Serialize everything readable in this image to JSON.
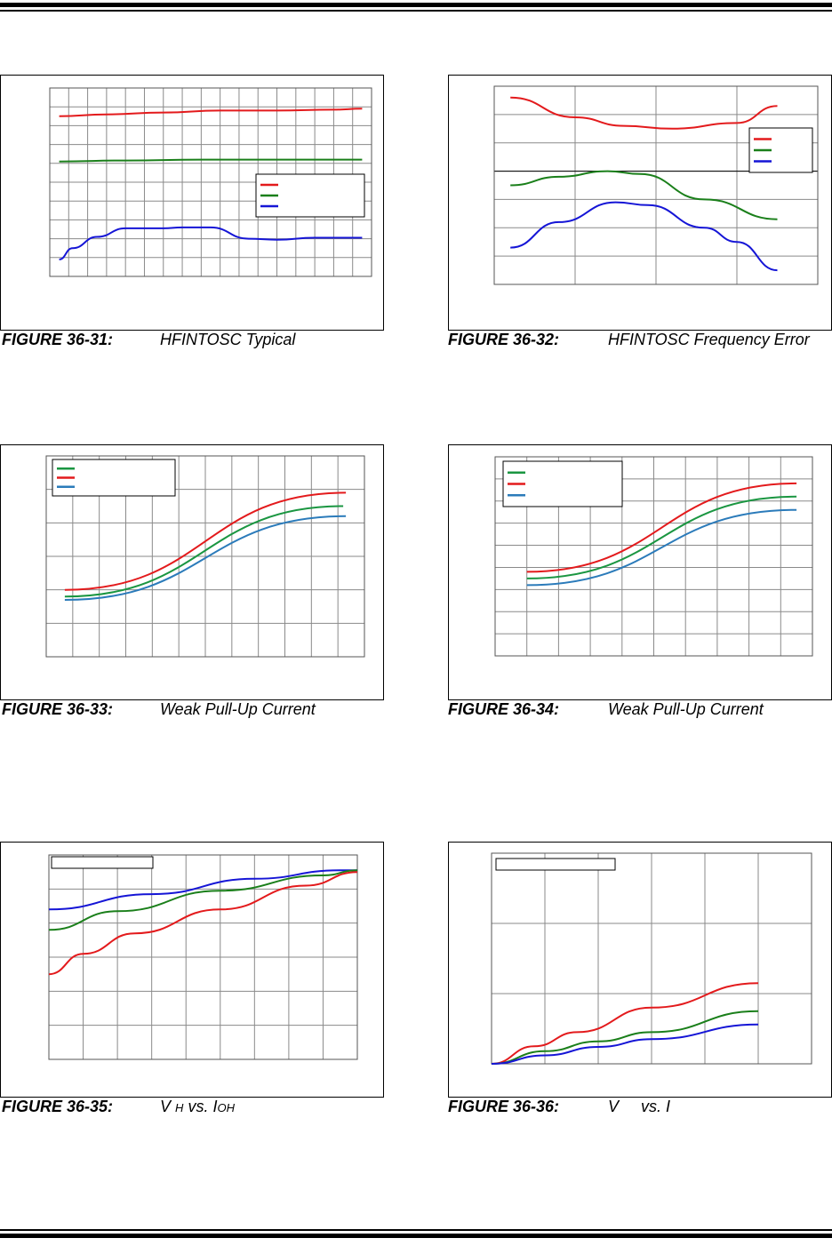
{
  "charts": [
    {
      "id": "c31",
      "caption_number": "FIGURE 36-31:",
      "caption_title": "HFINTOSC Typical",
      "chart_data": {
        "type": "line",
        "xlim": [
          0,
          17
        ],
        "ylim": [
          0,
          10
        ],
        "x_gridlines": 17,
        "y_gridlines": 10,
        "legend": "right",
        "series": [
          {
            "color": "#e31a1c",
            "points": [
              [
                0.5,
                8.5
              ],
              [
                3,
                8.6
              ],
              [
                6,
                8.7
              ],
              [
                9,
                8.8
              ],
              [
                12,
                8.8
              ],
              [
                15,
                8.85
              ],
              [
                16.5,
                8.9
              ]
            ]
          },
          {
            "color": "#1a7f1a",
            "points": [
              [
                0.5,
                6.1
              ],
              [
                4,
                6.15
              ],
              [
                8,
                6.2
              ],
              [
                12,
                6.2
              ],
              [
                16.5,
                6.2
              ]
            ]
          },
          {
            "color": "#1515d6",
            "points": [
              [
                0.5,
                0.9
              ],
              [
                1.2,
                1.5
              ],
              [
                2.5,
                2.1
              ],
              [
                4,
                2.55
              ],
              [
                6,
                2.55
              ],
              [
                7,
                2.6
              ],
              [
                8.5,
                2.6
              ],
              [
                10.5,
                2.0
              ],
              [
                12,
                1.95
              ],
              [
                14,
                2.05
              ],
              [
                16.5,
                2.05
              ]
            ]
          }
        ]
      }
    },
    {
      "id": "c32",
      "caption_number": "FIGURE 36-32:",
      "caption_title": "HFINTOSC Frequency Error",
      "chart_data": {
        "type": "line",
        "xlim": [
          0,
          4
        ],
        "ylim": [
          0,
          7
        ],
        "x_gridlines": 4,
        "y_gridlines": 7,
        "zero_line": 4,
        "legend": "right",
        "series": [
          {
            "color": "#e31a1c",
            "points": [
              [
                0.2,
                6.6
              ],
              [
                1,
                5.9
              ],
              [
                1.6,
                5.6
              ],
              [
                2.2,
                5.5
              ],
              [
                3,
                5.7
              ],
              [
                3.5,
                6.3
              ]
            ]
          },
          {
            "color": "#1a7f1a",
            "points": [
              [
                0.2,
                3.5
              ],
              [
                0.8,
                3.8
              ],
              [
                1.4,
                4.0
              ],
              [
                1.8,
                3.9
              ],
              [
                2.6,
                3.0
              ],
              [
                3.5,
                2.3
              ]
            ]
          },
          {
            "color": "#1515d6",
            "points": [
              [
                0.2,
                1.3
              ],
              [
                0.8,
                2.2
              ],
              [
                1.5,
                2.9
              ],
              [
                1.9,
                2.8
              ],
              [
                2.6,
                2.0
              ],
              [
                3.0,
                1.5
              ],
              [
                3.5,
                0.5
              ]
            ]
          }
        ]
      }
    },
    {
      "id": "c33",
      "caption_number": "FIGURE 36-33:",
      "caption_title": "Weak Pull-Up Current",
      "chart_data": {
        "type": "line",
        "xlim": [
          0,
          12
        ],
        "ylim": [
          0,
          6
        ],
        "x_gridlines": 12,
        "y_gridlines": 6,
        "legend": "top-left",
        "series": [
          {
            "color": "#1a9641",
            "points": [
              [
                0.7,
                1.8
              ],
              [
                11.2,
                4.5
              ]
            ]
          },
          {
            "color": "#e31a1c",
            "points": [
              [
                0.7,
                2.0
              ],
              [
                11.3,
                4.9
              ]
            ]
          },
          {
            "color": "#2b7bba",
            "points": [
              [
                0.7,
                1.7
              ],
              [
                11.3,
                4.2
              ]
            ]
          }
        ]
      }
    },
    {
      "id": "c34",
      "caption_number": "FIGURE 36-34:",
      "caption_title": "Weak Pull-Up Current",
      "chart_data": {
        "type": "line",
        "xlim": [
          0,
          10
        ],
        "ylim": [
          0,
          9
        ],
        "x_gridlines": 10,
        "y_gridlines": 9,
        "legend": "top-left",
        "series": [
          {
            "color": "#1a9641",
            "points": [
              [
                1,
                3.5
              ],
              [
                9.5,
                7.2
              ]
            ]
          },
          {
            "color": "#e31a1c",
            "points": [
              [
                1,
                3.8
              ],
              [
                9.5,
                7.8
              ]
            ]
          },
          {
            "color": "#2b7bba",
            "points": [
              [
                1,
                3.2
              ],
              [
                9.5,
                6.6
              ]
            ]
          }
        ]
      }
    },
    {
      "id": "c35",
      "caption_number": "FIGURE 36-35:",
      "caption_title_main": "V",
      "caption_title_sub": "H",
      "caption_title_vs": "vs. I",
      "caption_title_sub2": "OH",
      "chart_data": {
        "type": "line",
        "xlim": [
          0,
          9
        ],
        "ylim": [
          0,
          6
        ],
        "x_gridlines": 9,
        "y_gridlines": 6,
        "legend": "top-left",
        "series": [
          {
            "color": "#1515d6",
            "points": [
              [
                0,
                4.4
              ],
              [
                3,
                4.85
              ],
              [
                6,
                5.3
              ],
              [
                8.5,
                5.55
              ],
              [
                9,
                5.55
              ]
            ]
          },
          {
            "color": "#1a7f1a",
            "points": [
              [
                0,
                3.8
              ],
              [
                2,
                4.35
              ],
              [
                5,
                4.95
              ],
              [
                8,
                5.4
              ],
              [
                9,
                5.55
              ]
            ]
          },
          {
            "color": "#e31a1c",
            "points": [
              [
                0,
                2.5
              ],
              [
                1,
                3.1
              ],
              [
                2.5,
                3.7
              ],
              [
                5,
                4.4
              ],
              [
                7.5,
                5.1
              ],
              [
                9,
                5.5
              ]
            ]
          }
        ]
      }
    },
    {
      "id": "c36",
      "caption_number": "FIGURE 36-36:",
      "caption_title_main": "V",
      "caption_title_vs": "vs. I",
      "chart_data": {
        "type": "line",
        "xlim": [
          0,
          6
        ],
        "ylim": [
          0,
          3
        ],
        "x_gridlines": 6,
        "y_gridlines": 3,
        "legend": "top-left",
        "series": [
          {
            "color": "#e31a1c",
            "points": [
              [
                0,
                0
              ],
              [
                0.8,
                0.25
              ],
              [
                1.6,
                0.45
              ],
              [
                3,
                0.8
              ],
              [
                5,
                1.15
              ]
            ]
          },
          {
            "color": "#1a7f1a",
            "points": [
              [
                0,
                0
              ],
              [
                1,
                0.18
              ],
              [
                2,
                0.32
              ],
              [
                3,
                0.45
              ],
              [
                5,
                0.75
              ]
            ]
          },
          {
            "color": "#1515d6",
            "points": [
              [
                0,
                0
              ],
              [
                1,
                0.12
              ],
              [
                2,
                0.24
              ],
              [
                3,
                0.35
              ],
              [
                5,
                0.56
              ]
            ]
          }
        ]
      }
    }
  ]
}
